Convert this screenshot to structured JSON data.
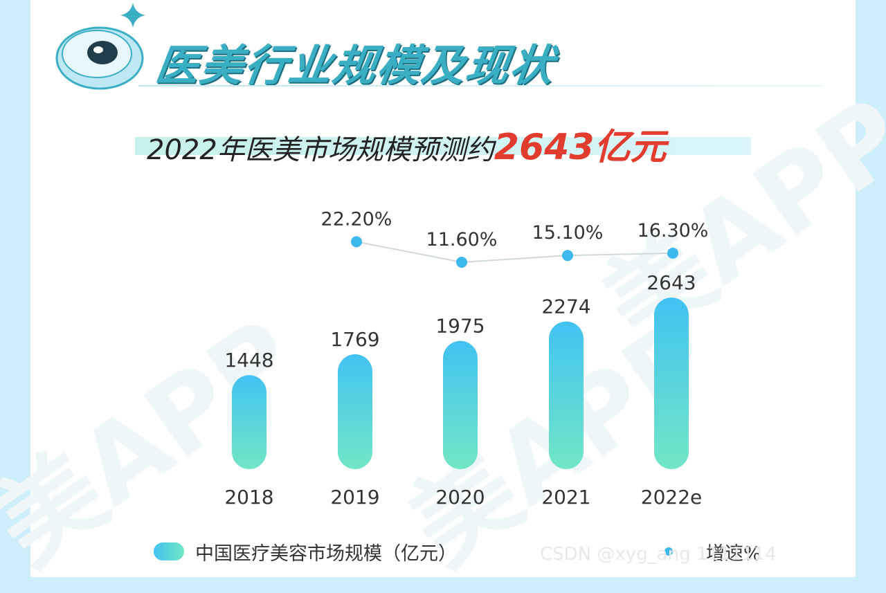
{
  "header": {
    "title": "医美行业规模及现状",
    "subtitle_prefix": "2022年医美市场规模预测约",
    "subtitle_highlight": "2643亿元",
    "subtitle_suffix": ""
  },
  "watermark_text": "美APP",
  "footer_watermark": "CSDN @xyg_ang 1111114",
  "colors": {
    "title": "#3aaec2",
    "highlight": "#e23c2e",
    "bar_top": "#42c2f2",
    "bar_bottom": "#72e6c6",
    "dot": "#3fb7ef",
    "line": "#cfd8dc"
  },
  "chart_data": {
    "type": "bar",
    "categories": [
      "2018",
      "2019",
      "2020",
      "2021",
      "2022e"
    ],
    "series": [
      {
        "name": "中国医疗美容市场规模（亿元）",
        "type": "bar",
        "values": [
          1448,
          1769,
          1975,
          2274,
          2643
        ],
        "labels": [
          "1448",
          "1769",
          "1975",
          "2274",
          "2643"
        ]
      },
      {
        "name": "增速%",
        "type": "line",
        "values": [
          null,
          22.2,
          11.6,
          15.1,
          16.3
        ],
        "labels": [
          "",
          "22.20%",
          "11.60%",
          "15.10%",
          "16.30%"
        ]
      }
    ],
    "legend": "bottom",
    "grid": false
  }
}
